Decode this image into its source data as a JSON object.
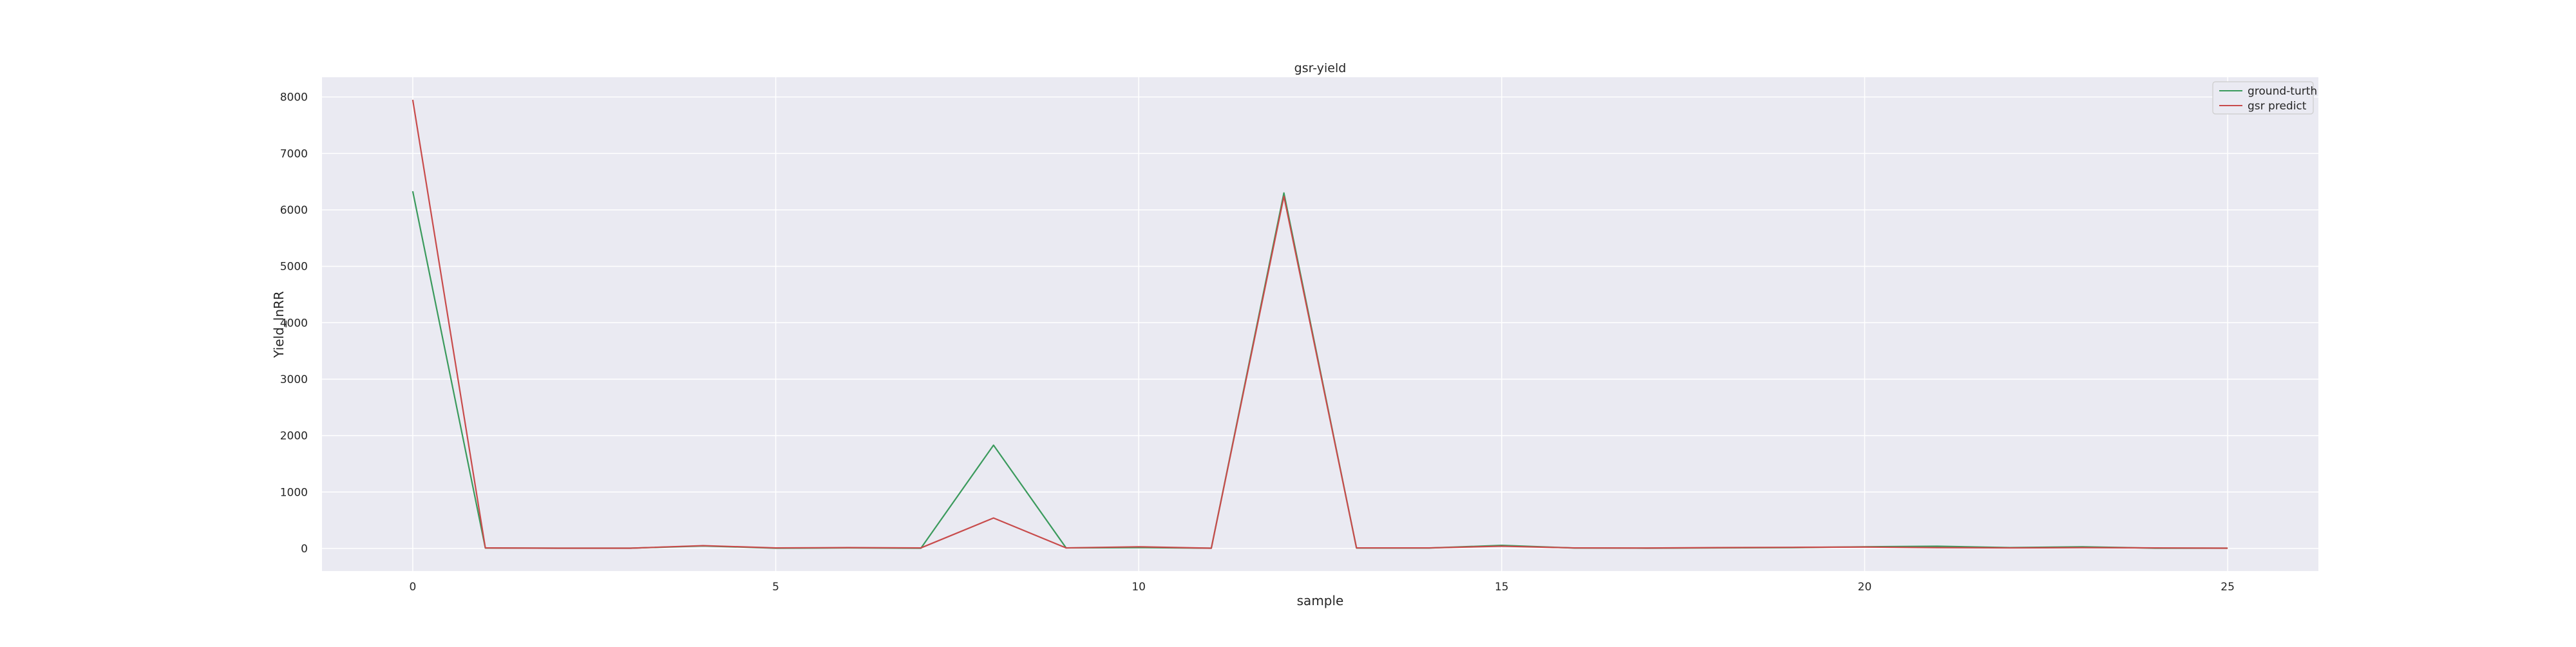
{
  "chart_data": {
    "type": "line",
    "title": "gsr-yield",
    "xlabel": "sample",
    "ylabel": "Yield_lnRR",
    "xlim": [
      -1.25,
      26.25
    ],
    "ylim": [
      -400,
      8350
    ],
    "xticks": [
      0,
      5,
      10,
      15,
      20,
      25
    ],
    "yticks": [
      0,
      1000,
      2000,
      3000,
      4000,
      5000,
      6000,
      7000,
      8000
    ],
    "grid": true,
    "legend_position": "top-right",
    "x": [
      0,
      1,
      2,
      3,
      4,
      5,
      6,
      7,
      8,
      9,
      10,
      11,
      12,
      13,
      14,
      15,
      16,
      17,
      18,
      19,
      20,
      21,
      22,
      23,
      24,
      25
    ],
    "series": [
      {
        "name": "ground-turth",
        "color": "#3a9a5c",
        "values": [
          6330,
          8,
          5,
          5,
          45,
          5,
          10,
          5,
          1830,
          10,
          15,
          5,
          6300,
          8,
          8,
          55,
          8,
          5,
          10,
          15,
          30,
          40,
          15,
          30,
          5,
          5
        ]
      },
      {
        "name": "gsr predict",
        "color": "#c84b4b",
        "values": [
          7950,
          10,
          5,
          5,
          50,
          10,
          15,
          10,
          540,
          10,
          30,
          5,
          6240,
          10,
          10,
          40,
          10,
          8,
          15,
          20,
          25,
          15,
          10,
          15,
          10,
          5
        ]
      }
    ]
  }
}
